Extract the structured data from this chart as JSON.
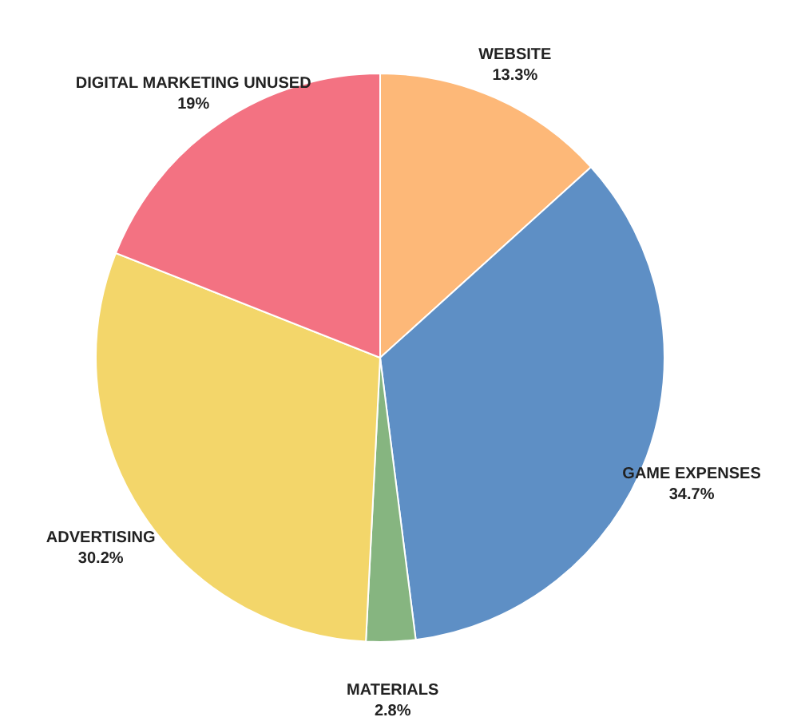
{
  "chart_data": {
    "type": "pie",
    "categories": [
      "WEBSITE",
      "GAME EXPENSES",
      "MATERIALS",
      "ADVERTISING",
      "DIGITAL MARKETING UNUSED"
    ],
    "values": [
      13.3,
      34.7,
      2.8,
      30.2,
      19
    ],
    "value_labels": [
      "13.3%",
      "34.7%",
      "2.8%",
      "30.2%",
      "19%"
    ],
    "colors": [
      "#fdb878",
      "#5e8fc5",
      "#86b580",
      "#f3d66a",
      "#f37282"
    ]
  }
}
